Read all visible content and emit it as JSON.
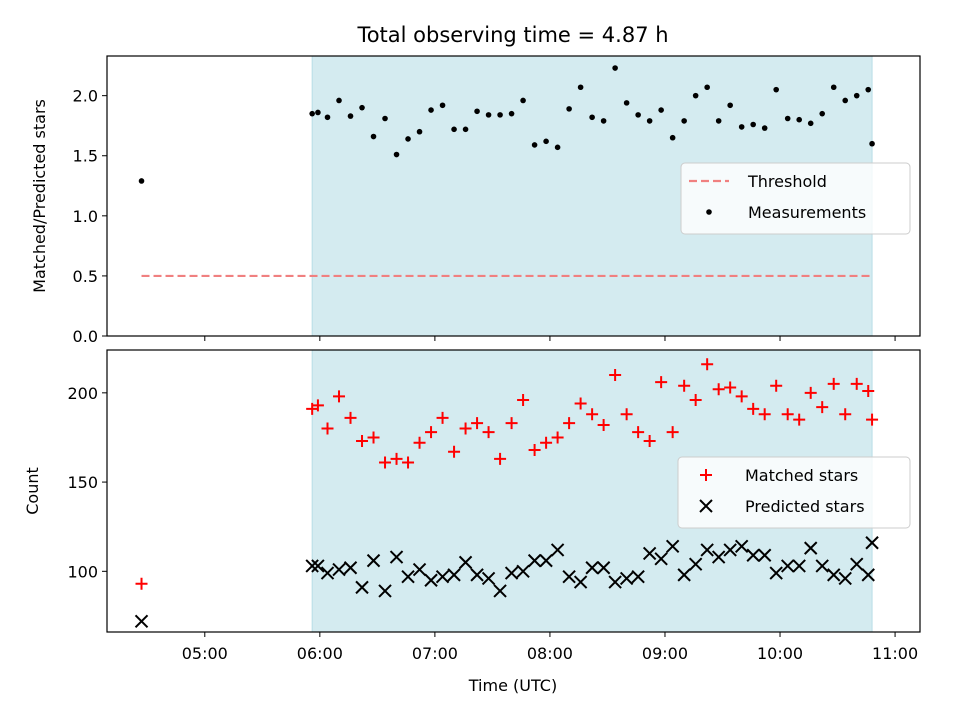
{
  "figure": {
    "suptitle": "Total observing time = 4.87 h",
    "xlabel": "Time (UTC)",
    "x_ticks": [
      "05:00",
      "06:00",
      "07:00",
      "08:00",
      "09:00",
      "10:00",
      "11:00"
    ],
    "colors": {
      "shade": "#d4ebf0",
      "threshold": "#f08080",
      "matched": "#ff0000",
      "predicted": "#000000",
      "measure": "#000000"
    }
  },
  "chart_data": [
    {
      "type": "scatter",
      "ylabel": "Matched/Predicted stars",
      "ylim": [
        0,
        2.33
      ],
      "y_ticks": [
        0.0,
        0.5,
        1.0,
        1.5,
        2.0
      ],
      "x_range": [
        "04:09",
        "11:13"
      ],
      "shaded_interval": [
        "05:56",
        "10:48"
      ],
      "legend": {
        "position": "center-right",
        "entries": [
          "Threshold",
          "Measurements"
        ]
      },
      "threshold": {
        "name": "Threshold",
        "value": 0.5,
        "x": [
          "04:27",
          "10:48"
        ]
      },
      "series": [
        {
          "name": "Measurements",
          "x": [
            "04:27",
            "05:56",
            "05:59",
            "06:04",
            "06:10",
            "06:16",
            "06:22",
            "06:28",
            "06:34",
            "06:40",
            "06:46",
            "06:52",
            "06:58",
            "07:04",
            "07:10",
            "07:16",
            "07:22",
            "07:28",
            "07:34",
            "07:40",
            "07:46",
            "07:52",
            "07:58",
            "08:04",
            "08:10",
            "08:16",
            "08:22",
            "08:28",
            "08:34",
            "08:40",
            "08:46",
            "08:52",
            "08:58",
            "09:04",
            "09:10",
            "09:16",
            "09:22",
            "09:28",
            "09:34",
            "09:40",
            "09:46",
            "09:52",
            "09:58",
            "10:04",
            "10:10",
            "10:16",
            "10:22",
            "10:28",
            "10:34",
            "10:40",
            "10:46",
            "10:48"
          ],
          "y": [
            1.29,
            1.85,
            1.86,
            1.82,
            1.96,
            1.83,
            1.9,
            1.66,
            1.81,
            1.51,
            1.64,
            1.7,
            1.88,
            1.92,
            1.72,
            1.72,
            1.87,
            1.84,
            1.84,
            1.85,
            1.96,
            1.59,
            1.62,
            1.57,
            1.89,
            2.07,
            1.82,
            1.79,
            2.23,
            1.94,
            1.84,
            1.79,
            1.88,
            1.65,
            1.79,
            2.0,
            2.07,
            1.79,
            1.92,
            1.74,
            1.76,
            1.73,
            2.05,
            1.81,
            1.8,
            1.77,
            1.85,
            2.07,
            1.96,
            2.0,
            2.05,
            1.6
          ]
        }
      ]
    },
    {
      "type": "scatter",
      "ylabel": "Count",
      "ylim": [
        66,
        224
      ],
      "y_ticks": [
        100,
        150,
        200
      ],
      "x_range": [
        "04:09",
        "11:13"
      ],
      "shaded_interval": [
        "05:56",
        "10:48"
      ],
      "legend": {
        "position": "center-right",
        "entries": [
          "Matched stars",
          "Predicted stars"
        ]
      },
      "series": [
        {
          "name": "Matched stars",
          "marker": "+",
          "x": [
            "04:27",
            "05:56",
            "05:59",
            "06:04",
            "06:10",
            "06:16",
            "06:22",
            "06:28",
            "06:34",
            "06:40",
            "06:46",
            "06:52",
            "06:58",
            "07:04",
            "07:10",
            "07:16",
            "07:22",
            "07:28",
            "07:34",
            "07:40",
            "07:46",
            "07:52",
            "07:58",
            "08:04",
            "08:10",
            "08:16",
            "08:22",
            "08:28",
            "08:34",
            "08:40",
            "08:46",
            "08:52",
            "08:58",
            "09:04",
            "09:10",
            "09:16",
            "09:22",
            "09:28",
            "09:34",
            "09:40",
            "09:46",
            "09:52",
            "09:58",
            "10:04",
            "10:10",
            "10:16",
            "10:22",
            "10:28",
            "10:34",
            "10:40",
            "10:46",
            "10:48"
          ],
          "y": [
            93,
            191,
            193,
            180,
            198,
            186,
            173,
            175,
            161,
            163,
            161,
            172,
            178,
            186,
            167,
            180,
            183,
            178,
            163,
            183,
            196,
            168,
            172,
            175,
            183,
            194,
            188,
            182,
            210,
            188,
            178,
            173,
            206,
            178,
            204,
            196,
            216,
            202,
            203,
            198,
            191,
            188,
            204,
            188,
            185,
            200,
            192,
            205,
            188,
            205,
            201,
            185
          ]
        },
        {
          "name": "Predicted stars",
          "marker": "x",
          "x": [
            "04:27",
            "05:56",
            "05:59",
            "06:04",
            "06:10",
            "06:16",
            "06:22",
            "06:28",
            "06:34",
            "06:40",
            "06:46",
            "06:52",
            "06:58",
            "07:04",
            "07:10",
            "07:16",
            "07:22",
            "07:28",
            "07:34",
            "07:40",
            "07:46",
            "07:52",
            "07:58",
            "08:04",
            "08:10",
            "08:16",
            "08:22",
            "08:28",
            "08:34",
            "08:40",
            "08:46",
            "08:52",
            "08:58",
            "09:04",
            "09:10",
            "09:16",
            "09:22",
            "09:28",
            "09:34",
            "09:40",
            "09:46",
            "09:52",
            "09:58",
            "10:04",
            "10:10",
            "10:16",
            "10:22",
            "10:28",
            "10:34",
            "10:40",
            "10:46",
            "10:48"
          ],
          "y": [
            72,
            103,
            103,
            99,
            101,
            102,
            91,
            106,
            89,
            108,
            97,
            101,
            95,
            97,
            98,
            105,
            98,
            96,
            89,
            99,
            100,
            106,
            106,
            112,
            97,
            94,
            102,
            102,
            94,
            96,
            97,
            110,
            107,
            114,
            98,
            104,
            112,
            108,
            112,
            114,
            109,
            109,
            99,
            103,
            103,
            113,
            103,
            98,
            96,
            104,
            98,
            116
          ]
        }
      ]
    }
  ]
}
